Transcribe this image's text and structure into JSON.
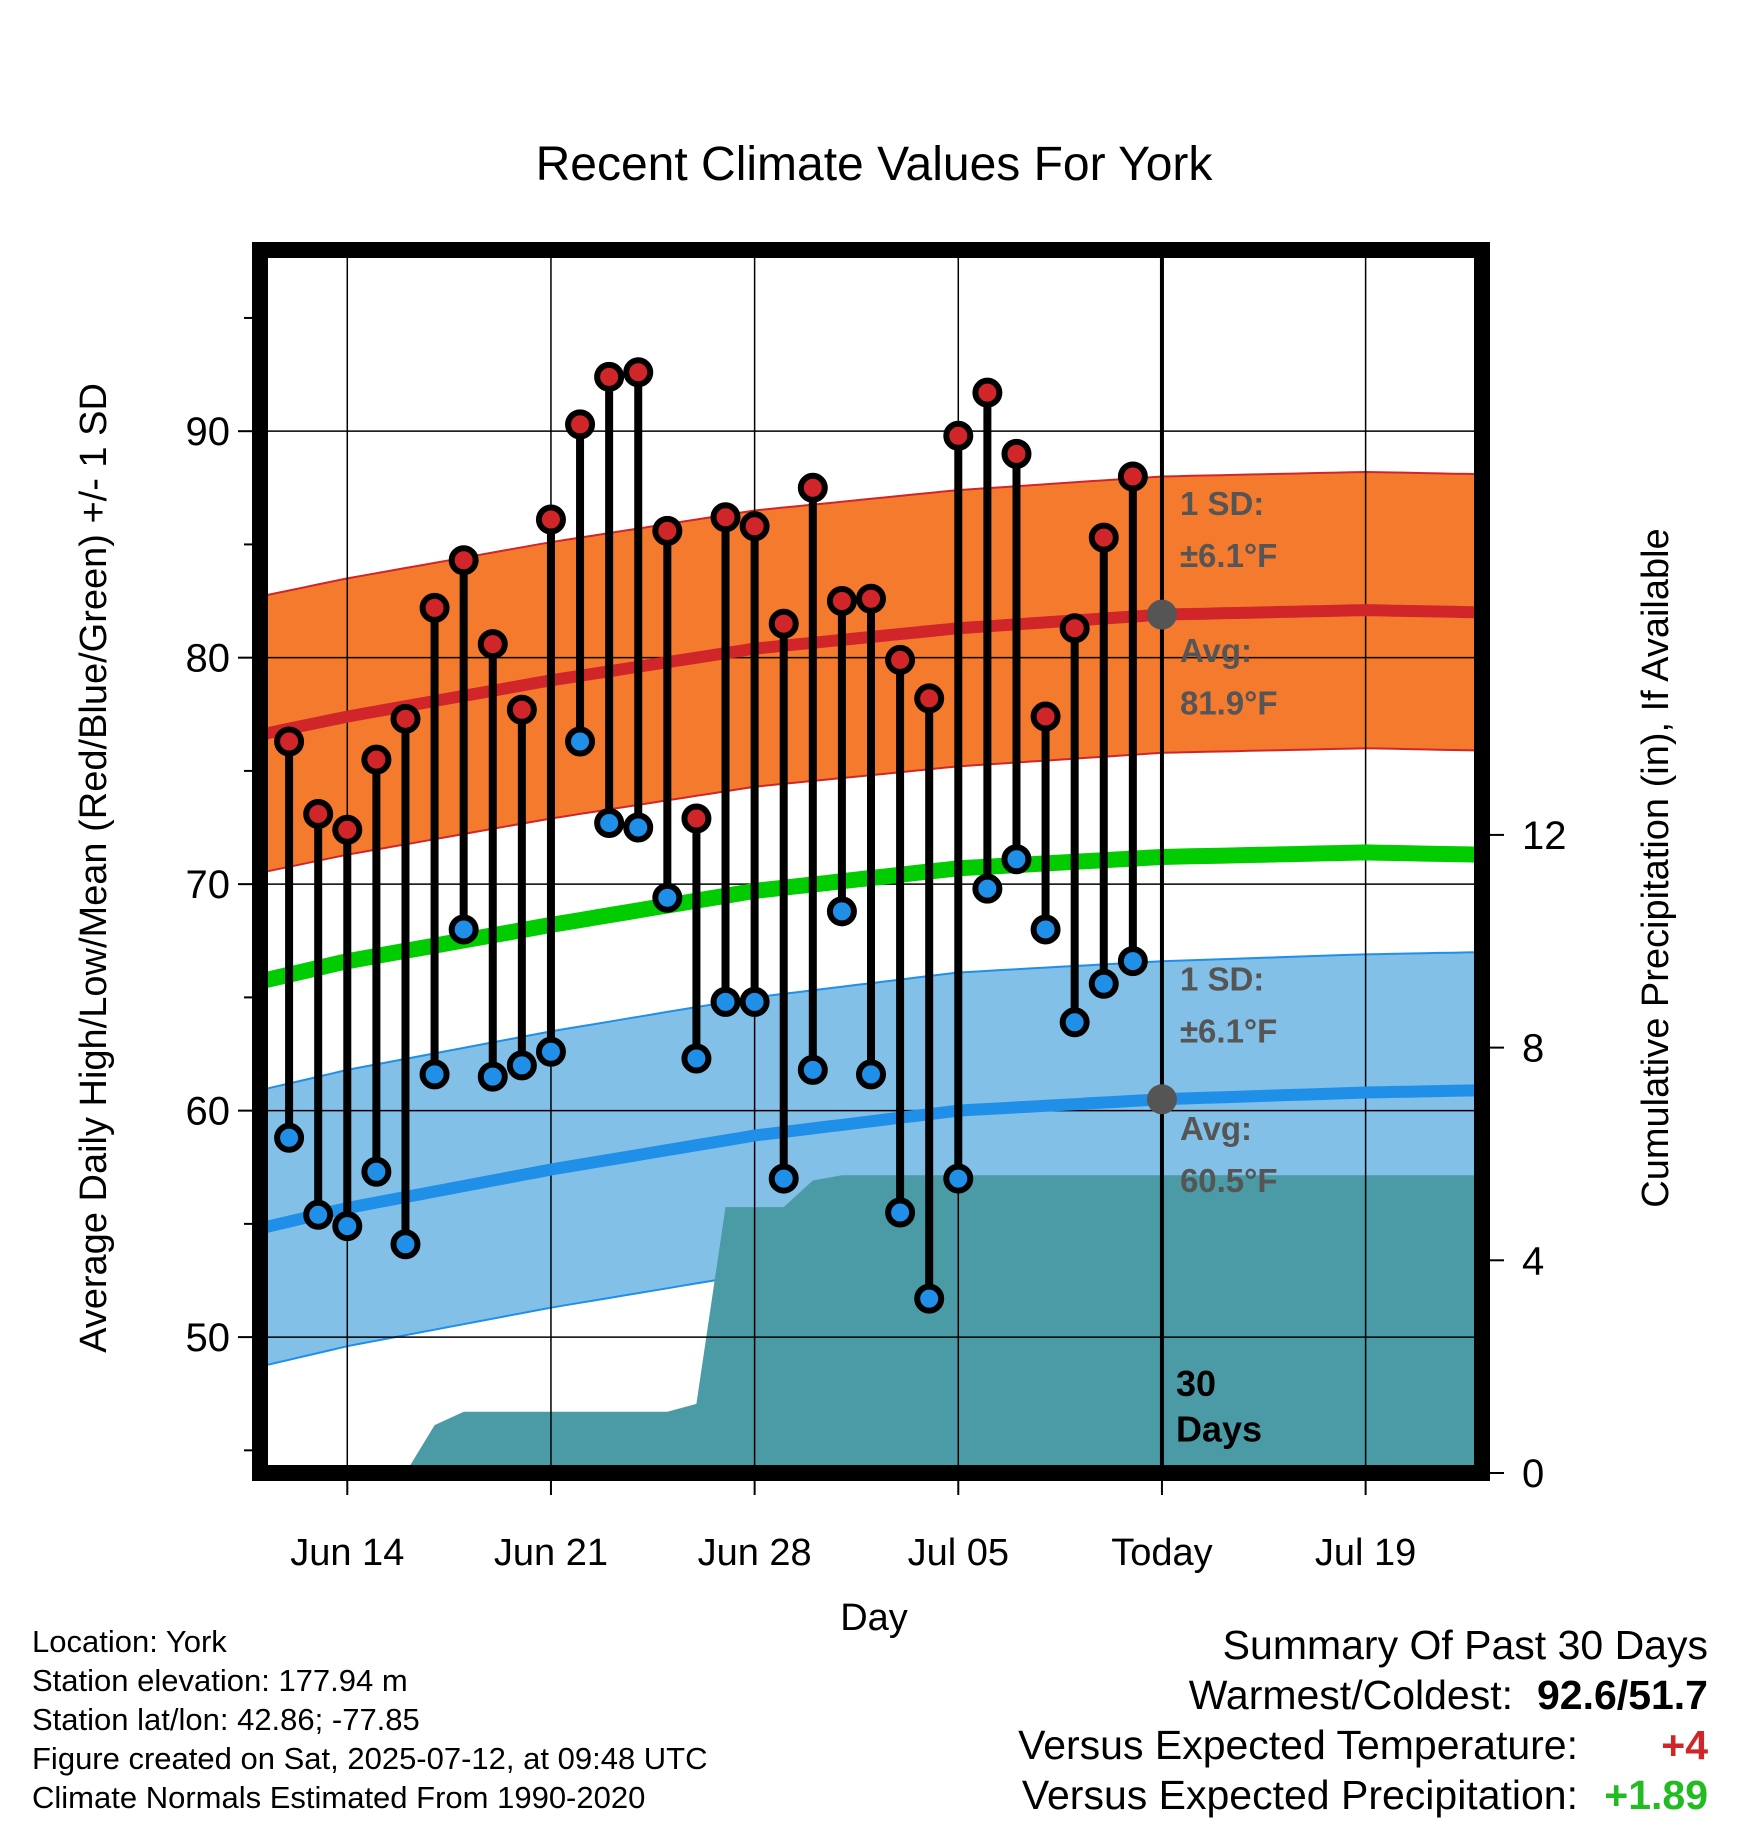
{
  "chart_data": {
    "type": "line",
    "title": "Recent Climate Values For York",
    "xlabel": "Day",
    "ylabel": "Average Daily High/Low/Mean (Red/Blue/Green) +/- 1 SD",
    "y2label": "Cumulative Precipitation (in), If Available",
    "x_start": "Jun 11",
    "x_end": "Jul 23",
    "today": "Jul 12",
    "ylim": [
      44,
      98
    ],
    "y2lim": [
      0,
      23
    ],
    "yticks": [
      50,
      60,
      70,
      80,
      90
    ],
    "y2ticks": [
      0,
      4,
      8,
      12
    ],
    "x_tick_labels": [
      "Jun 14",
      "Jun 21",
      "Jun 28",
      "Jul 05",
      "Today",
      "Jul 19"
    ],
    "grid": true,
    "daily": {
      "dates": [
        "Jun 12",
        "Jun 13",
        "Jun 14",
        "Jun 15",
        "Jun 16",
        "Jun 17",
        "Jun 18",
        "Jun 19",
        "Jun 20",
        "Jun 21",
        "Jun 22",
        "Jun 23",
        "Jun 24",
        "Jun 25",
        "Jun 26",
        "Jun 27",
        "Jun 28",
        "Jun 29",
        "Jun 30",
        "Jul 01",
        "Jul 02",
        "Jul 03",
        "Jul 04",
        "Jul 05",
        "Jul 06",
        "Jul 07",
        "Jul 08",
        "Jul 09",
        "Jul 10",
        "Jul 11"
      ],
      "highs": [
        76.3,
        73.1,
        72.4,
        75.5,
        77.3,
        82.2,
        84.3,
        80.6,
        77.7,
        86.1,
        90.3,
        92.4,
        92.6,
        85.6,
        72.9,
        86.2,
        85.8,
        81.5,
        87.5,
        82.5,
        82.6,
        79.9,
        78.2,
        89.8,
        91.7,
        89.0,
        77.4,
        81.3,
        85.3,
        88.0
      ],
      "lows": [
        58.8,
        55.4,
        54.9,
        57.3,
        54.1,
        61.6,
        68.0,
        61.5,
        62.0,
        62.6,
        76.3,
        72.7,
        72.5,
        69.4,
        62.3,
        64.8,
        64.8,
        57.0,
        61.8,
        68.8,
        61.6,
        55.5,
        51.7,
        57.0,
        69.8,
        71.1,
        68.0,
        63.9,
        65.6,
        66.6
      ],
      "high_color": "#d0262a",
      "low_color": "#1f8fe8"
    },
    "normals": {
      "days": [
        "Jun 11",
        "Jun 14",
        "Jun 21",
        "Jun 28",
        "Jul 05",
        "Jul 12",
        "Jul 19",
        "Jul 23"
      ],
      "high_mean": [
        76.6,
        77.4,
        79.0,
        80.4,
        81.3,
        81.9,
        82.1,
        82.0
      ],
      "low_mean": [
        54.8,
        55.7,
        57.4,
        58.9,
        60.0,
        60.5,
        60.8,
        60.9
      ],
      "mean": [
        65.7,
        66.6,
        68.2,
        69.7,
        70.7,
        71.2,
        71.4,
        71.3
      ],
      "sd": 6.1,
      "high_band_color": "#f47b2e",
      "high_line_color": "#d0262a",
      "low_band_color": "#82c0e8",
      "low_line_color": "#1f8fe8",
      "mean_color": "#00cc00"
    },
    "precipitation": {
      "dates": [
        "Jun 11",
        "Jun 16",
        "Jun 17",
        "Jun 18",
        "Jun 22",
        "Jun 23",
        "Jun 24",
        "Jun 25",
        "Jun 26",
        "Jun 27",
        "Jun 28",
        "Jun 29",
        "Jun 30",
        "Jul 01",
        "Jul 02",
        "Jul 12",
        "Jul 23"
      ],
      "cumulative": [
        0,
        0,
        0.9,
        1.15,
        1.15,
        1.15,
        1.15,
        1.15,
        1.3,
        5.0,
        5.0,
        5.0,
        5.5,
        5.6,
        5.6,
        5.6,
        5.6
      ],
      "color": "#4a9ba5"
    },
    "annotations": {
      "high_sd": "1 SD:",
      "high_sd_value": "±6.1°F",
      "high_avg": "Avg:",
      "high_avg_value": "81.9°F",
      "low_sd": "1 SD:",
      "low_sd_value": "±6.1°F",
      "low_avg": "Avg:",
      "low_avg_value": "60.5°F",
      "days_count": "30",
      "days_label": "Days",
      "label_color": "#555555"
    }
  },
  "info": {
    "location": "Location: York",
    "elevation": "Station elevation: 177.94 m",
    "latlon": "Station lat/lon: 42.86; -77.85",
    "created": "Figure created on Sat, 2025-07-12, at 09:48 UTC",
    "normals": "Climate Normals Estimated From 1990-2020"
  },
  "summary": {
    "title": "Summary Of Past 30 Days",
    "warmest_label": "Warmest/Coldest:",
    "warmest_value": "92.6/51.7",
    "temp_label": "Versus Expected Temperature:",
    "temp_value": "+4",
    "temp_color": "#d0262a",
    "precip_label": "Versus Expected Precipitation:",
    "precip_value": "+1.89",
    "precip_color": "#22bb22"
  }
}
